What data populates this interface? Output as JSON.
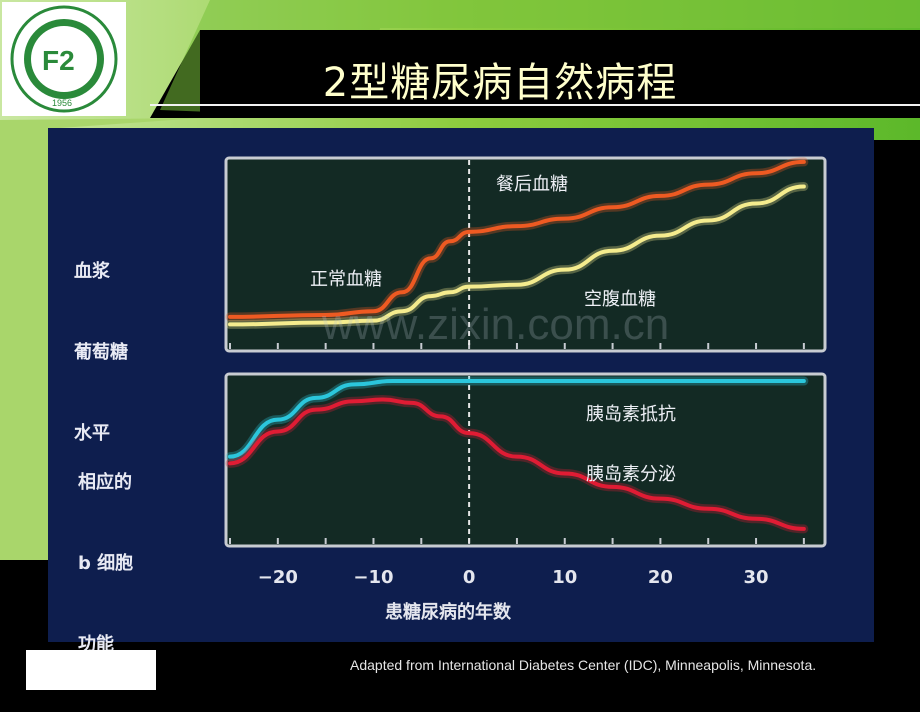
{
  "slide": {
    "title": "2型糖尿病自然病程",
    "source": "Adapted from International Diabetes Center (IDC), Minneapolis, Minnesota.",
    "watermark": "www.zixin.com.cn"
  },
  "logo": {
    "year": "1956"
  },
  "chart_data": [
    {
      "type": "line",
      "ylabel_lines": [
        "血浆",
        "葡萄糖",
        "水平"
      ],
      "xlim": [
        -25,
        37
      ],
      "series": [
        {
          "name": "餐后血糖",
          "color": "#ee5a22",
          "x": [
            -25,
            -15,
            -10,
            -7,
            -4,
            -2,
            0,
            5,
            10,
            15,
            20,
            25,
            30,
            35
          ],
          "y": [
            0.17,
            0.18,
            0.2,
            0.3,
            0.48,
            0.57,
            0.62,
            0.65,
            0.69,
            0.75,
            0.81,
            0.87,
            0.93,
            0.99
          ]
        },
        {
          "name": "空腹血糖",
          "color": "#f5ec8e",
          "x": [
            -25,
            -15,
            -10,
            -7,
            -4,
            -2,
            0,
            5,
            10,
            15,
            20,
            25,
            30,
            35
          ],
          "y": [
            0.13,
            0.14,
            0.15,
            0.2,
            0.28,
            0.3,
            0.33,
            0.34,
            0.42,
            0.52,
            0.6,
            0.68,
            0.77,
            0.86
          ]
        }
      ],
      "annotations": [
        {
          "text": "正常血糖"
        }
      ],
      "divider_x": 0
    },
    {
      "type": "line",
      "ylabel_lines": [
        "相应的",
        "b 细胞",
        "功能"
      ],
      "xlabel": "患糖尿病的年数",
      "xlim": [
        -25,
        37
      ],
      "xticks": [
        -20,
        -10,
        0,
        10,
        20,
        30
      ],
      "xtick_labels": [
        "−20",
        "−10",
        "0",
        "10",
        "20",
        "30"
      ],
      "series": [
        {
          "name": "胰岛素抵抗",
          "color": "#2bc6dc",
          "x": [
            -25,
            -20,
            -16,
            -12,
            -8,
            -4,
            0,
            10,
            20,
            30,
            35
          ],
          "y": [
            0.52,
            0.74,
            0.87,
            0.95,
            0.97,
            0.97,
            0.97,
            0.97,
            0.97,
            0.97,
            0.97
          ]
        },
        {
          "name": "胰岛素分泌",
          "color": "#e01c34",
          "x": [
            -25,
            -20,
            -16,
            -12,
            -9,
            -6,
            -3,
            0,
            5,
            10,
            15,
            20,
            25,
            30,
            35
          ],
          "y": [
            0.48,
            0.67,
            0.8,
            0.85,
            0.86,
            0.84,
            0.76,
            0.66,
            0.52,
            0.42,
            0.34,
            0.27,
            0.21,
            0.15,
            0.09
          ]
        }
      ],
      "divider_x": 0
    }
  ]
}
